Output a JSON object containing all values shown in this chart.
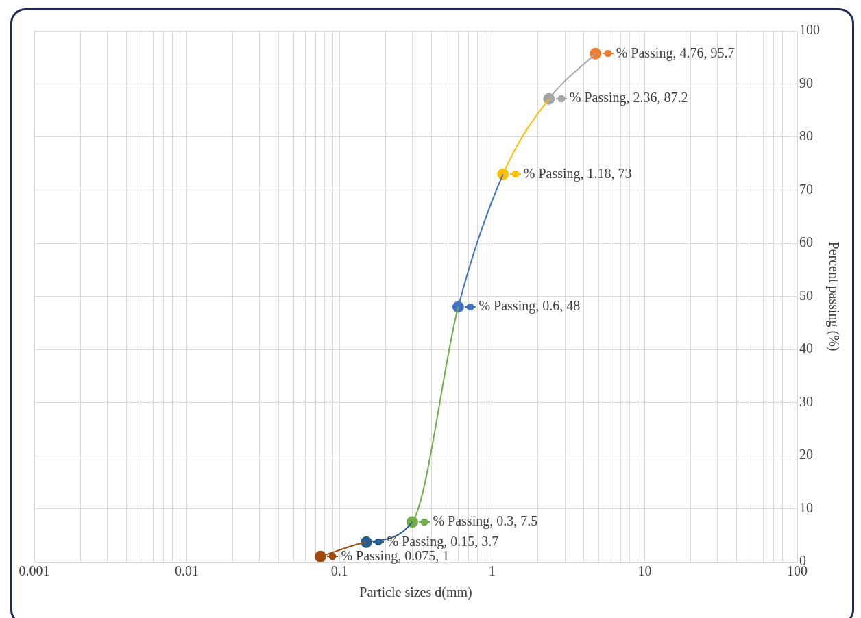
{
  "chart_data": {
    "type": "line",
    "xlabel": "Particle sizes d(mm)",
    "ylabel": "Percent passing (%)",
    "log": "x",
    "grid": true,
    "marker": "circle",
    "xlim": [
      0.001,
      100
    ],
    "xticks": [
      0.001,
      {
        "value": 0.002,
        "label": null
      },
      {
        "value": 0.003,
        "label": null
      },
      {
        "value": 0.004,
        "label": null
      },
      {
        "value": 0.005,
        "label": null
      },
      {
        "value": 0.006,
        "label": null
      },
      {
        "value": 0.007,
        "label": null
      },
      {
        "value": 0.008,
        "label": null
      },
      {
        "value": 0.009,
        "label": null
      },
      0.01,
      {
        "value": 0.02,
        "label": null
      },
      {
        "value": 0.03,
        "label": null
      },
      {
        "value": 0.04,
        "label": null
      },
      {
        "value": 0.05,
        "label": null
      },
      {
        "value": 0.06,
        "label": null
      },
      {
        "value": 0.07,
        "label": null
      },
      {
        "value": 0.08,
        "label": null
      },
      {
        "value": 0.09,
        "label": null
      },
      0.1,
      {
        "value": 0.2,
        "label": null
      },
      {
        "value": 0.3,
        "label": null
      },
      {
        "value": 0.4,
        "label": null
      },
      {
        "value": 0.5,
        "label": null
      },
      {
        "value": 0.6,
        "label": null
      },
      {
        "value": 0.7,
        "label": null
      },
      {
        "value": 0.8,
        "label": null
      },
      {
        "value": 0.9,
        "label": null
      },
      1,
      {
        "value": 2,
        "label": null
      },
      {
        "value": 3,
        "label": null
      },
      {
        "value": 4,
        "label": null
      },
      {
        "value": 5,
        "label": null
      },
      {
        "value": 6,
        "label": null
      },
      {
        "value": 7,
        "label": null
      },
      {
        "value": 8,
        "label": null
      },
      {
        "value": 9,
        "label": null
      },
      10,
      {
        "value": 20,
        "label": null
      },
      {
        "value": 30,
        "label": null
      },
      {
        "value": 40,
        "label": null
      },
      {
        "value": 50,
        "label": null
      },
      {
        "value": 60,
        "label": null
      },
      {
        "value": 70,
        "label": null
      },
      {
        "value": 80,
        "label": null
      },
      {
        "value": 90,
        "label": null
      },
      100
    ],
    "ylim": [
      0,
      100
    ],
    "yticks": [
      0,
      10,
      20,
      30,
      40,
      50,
      60,
      70,
      80,
      90,
      100
    ],
    "series": [
      {
        "color": "#9e480e",
        "marker": "none",
        "x": [
          0.075,
          0.15
        ],
        "values": [
          1,
          3.7
        ]
      },
      {
        "color": "#255e91",
        "marker": "none",
        "x": [
          0.15,
          0.3
        ],
        "values": [
          3.7,
          7.5
        ]
      },
      {
        "color": "#70ad47",
        "marker": "none",
        "x": [
          0.3,
          0.6
        ],
        "values": [
          7.5,
          48
        ]
      },
      {
        "color": "#4472c4",
        "marker": "none",
        "x": [
          0.6,
          1.18
        ],
        "values": [
          48,
          73
        ]
      },
      {
        "color": "#ffc000",
        "marker": "none",
        "x": [
          1.18,
          2.36
        ],
        "values": [
          73,
          87.2
        ]
      },
      {
        "color": "#a5a5a5",
        "marker": "none",
        "x": [
          2.36,
          4.76
        ],
        "values": [
          87.2,
          95.7
        ]
      },
      {
        "type": "scatter",
        "x": [
          0.075,
          0.15,
          0.3,
          0.6,
          1.18,
          2.36,
          4.76
        ],
        "values": [
          1,
          3.7,
          7.5,
          48,
          73,
          87.2,
          95.7
        ],
        "colors": [
          "#9e480e",
          "#255e91",
          "#70ad47",
          "#4472c4",
          "#ffc000",
          "#a5a5a5",
          "#ed7d31"
        ],
        "value_labels": [
          "% Passing, 0.075, 1",
          "% Passing, 0.15, 3.7",
          "% Passing, 0.3, 7.5",
          "% Passing, 0.6, 48",
          "% Passing, 1.18, 73",
          "% Passing, 2.36, 87.2",
          "% Passing, 4.76, 95.7"
        ]
      }
    ]
  }
}
